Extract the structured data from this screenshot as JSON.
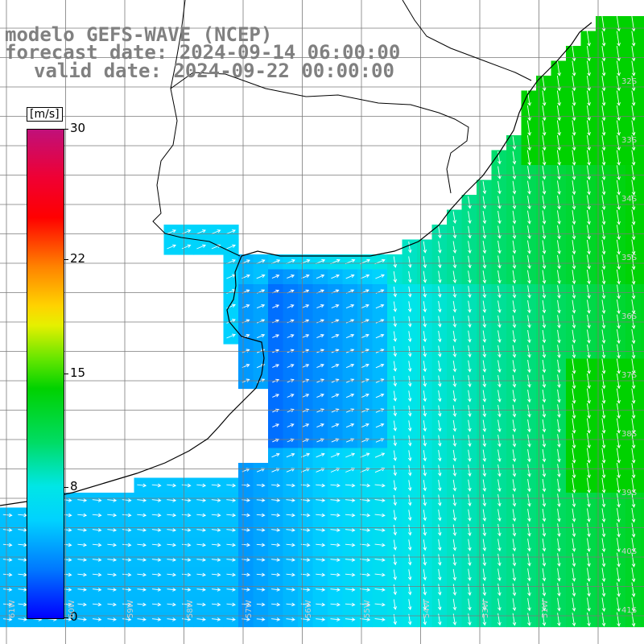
{
  "title": {
    "line1": "modelo GEFS-WAVE (NCEP)",
    "line2": "forecast date: 2024-09-14 06:00:00",
    "line3": "valid date: 2024-09-22 00:00:00"
  },
  "colorbar": {
    "unit": "[m/s]",
    "ticks": [
      {
        "value": 30,
        "label": "30"
      },
      {
        "value": 22,
        "label": "22"
      },
      {
        "value": 15,
        "label": "15"
      },
      {
        "value": 8,
        "label": "8"
      },
      {
        "value": 0,
        "label": "0"
      }
    ],
    "min": 0,
    "max": 30
  },
  "grid": {
    "lat_labels": [
      "32S",
      "33S",
      "34S",
      "35S",
      "36S",
      "37S",
      "38S",
      "39S",
      "40S",
      "41S"
    ],
    "lon_labels": [
      "61W",
      "60W",
      "59W",
      "58W",
      "57W",
      "56W",
      "55W",
      "54W",
      "53W",
      "51W"
    ]
  },
  "colors": {
    "land": "#ffffff",
    "coast": "#000000",
    "arrow": "#ffffff",
    "grid": "#7a7a7a",
    "title": "#808080"
  }
}
